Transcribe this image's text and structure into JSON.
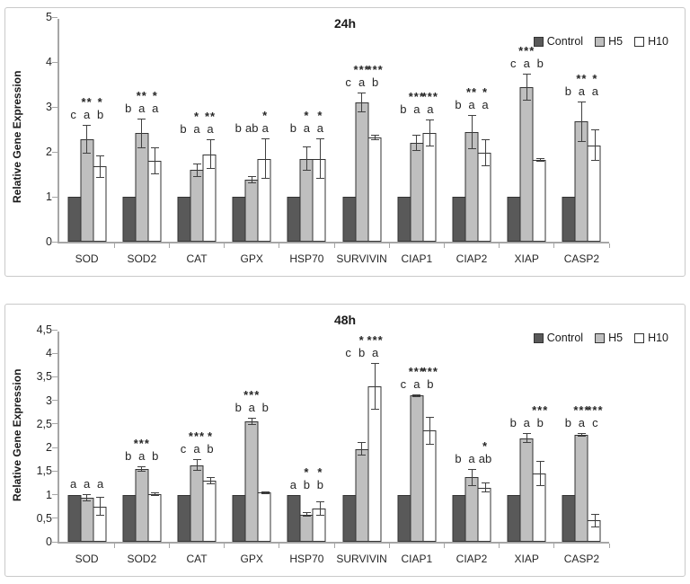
{
  "chart_data": [
    {
      "type": "bar",
      "title": "24h",
      "ylabel": "Relative Gene Expression",
      "ylim": [
        0,
        5
      ],
      "ystep": 1,
      "ytick_labels": [
        "0",
        "1",
        "2",
        "3",
        "4",
        "5"
      ],
      "grid": false,
      "legend_position": "top-right",
      "categories": [
        "SOD",
        "SOD2",
        "CAT",
        "GPX",
        "HSP70",
        "SURVIVIN",
        "CIAP1",
        "CIAP2",
        "XIAP",
        "CASP2"
      ],
      "series": [
        {
          "name": "Control",
          "fill": "#595959",
          "values": [
            1,
            1,
            1,
            1,
            1,
            1,
            1,
            1,
            1,
            1
          ],
          "errors": [
            0,
            0,
            0,
            0,
            0,
            0,
            0,
            0,
            0,
            0
          ]
        },
        {
          "name": "H5",
          "fill": "#bfbfbf",
          "values": [
            2.28,
            2.42,
            1.6,
            1.38,
            1.85,
            3.1,
            2.2,
            2.45,
            3.45,
            2.68
          ],
          "errors": [
            0.32,
            0.33,
            0.15,
            0.08,
            0.27,
            0.22,
            0.18,
            0.38,
            0.3,
            0.45
          ]
        },
        {
          "name": "H10",
          "fill": "#ffffff",
          "values": [
            1.68,
            1.8,
            1.95,
            1.85,
            1.85,
            2.33,
            2.42,
            1.98,
            1.82,
            2.15
          ],
          "errors": [
            0.25,
            0.3,
            0.33,
            0.45,
            0.45,
            0.06,
            0.3,
            0.3,
            0.04,
            0.35
          ]
        }
      ],
      "letters": [
        [
          "c",
          "a",
          "b"
        ],
        [
          "b",
          "a",
          "a"
        ],
        [
          "b",
          "a",
          "a"
        ],
        [
          "b",
          "ab",
          "a"
        ],
        [
          "b",
          "a",
          "a"
        ],
        [
          "c",
          "a",
          "b"
        ],
        [
          "b",
          "a",
          "a"
        ],
        [
          "b",
          "a",
          "a"
        ],
        [
          "c",
          "a",
          "b"
        ],
        [
          "b",
          "a",
          "a"
        ]
      ],
      "asterisks": [
        [
          "",
          "**",
          "*"
        ],
        [
          "",
          "**",
          "*"
        ],
        [
          "",
          "*",
          "**"
        ],
        [
          "",
          "",
          "*"
        ],
        [
          "",
          "*",
          "*"
        ],
        [
          "",
          "***",
          "***"
        ],
        [
          "",
          "***",
          "***"
        ],
        [
          "",
          "**",
          "*"
        ],
        [
          "",
          "***",
          ""
        ],
        [
          "",
          "**",
          "*"
        ]
      ]
    },
    {
      "type": "bar",
      "title": "48h",
      "ylabel": "Relative Gene Expression",
      "ylim": [
        0,
        4.5
      ],
      "ystep": 0.5,
      "ytick_labels": [
        "0",
        "0,5",
        "1",
        "1,5",
        "2",
        "2,5",
        "3",
        "3,5",
        "4",
        "4,5"
      ],
      "grid": false,
      "legend_position": "top-right",
      "categories": [
        "SOD",
        "SOD2",
        "CAT",
        "GPX",
        "HSP70",
        "SURVIVIN",
        "CIAP1",
        "CIAP2",
        "XIAP",
        "CASP2"
      ],
      "series": [
        {
          "name": "Control",
          "fill": "#595959",
          "values": [
            1,
            1,
            1,
            1,
            1,
            1,
            1,
            1,
            1,
            1
          ],
          "errors": [
            0,
            0,
            0,
            0,
            0,
            0,
            0,
            0,
            0,
            0
          ]
        },
        {
          "name": "H5",
          "fill": "#bfbfbf",
          "values": [
            0.94,
            1.54,
            1.63,
            2.55,
            0.58,
            1.97,
            3.1,
            1.37,
            2.2,
            2.27
          ],
          "errors": [
            0.08,
            0.06,
            0.13,
            0.08,
            0.05,
            0.14,
            0.03,
            0.18,
            0.1,
            0.03
          ]
        },
        {
          "name": "H10",
          "fill": "#ffffff",
          "values": [
            0.75,
            1.01,
            1.3,
            1.04,
            0.7,
            3.3,
            2.36,
            1.15,
            1.45,
            0.45
          ],
          "errors": [
            0.2,
            0.03,
            0.08,
            0.02,
            0.15,
            0.5,
            0.3,
            0.1,
            0.27,
            0.15
          ]
        }
      ],
      "letters": [
        [
          "a",
          "a",
          "a"
        ],
        [
          "b",
          "a",
          "b"
        ],
        [
          "c",
          "a",
          "b"
        ],
        [
          "b",
          "a",
          "b"
        ],
        [
          "a",
          "b",
          "b"
        ],
        [
          "c",
          "b",
          "a"
        ],
        [
          "c",
          "a",
          "b"
        ],
        [
          "b",
          "a",
          "ab"
        ],
        [
          "b",
          "a",
          "b"
        ],
        [
          "b",
          "a",
          "c"
        ]
      ],
      "asterisks": [
        [
          "",
          "",
          ""
        ],
        [
          "",
          "***",
          ""
        ],
        [
          "",
          "***",
          "*"
        ],
        [
          "",
          "***",
          ""
        ],
        [
          "",
          "*",
          "*"
        ],
        [
          "",
          "*",
          "***"
        ],
        [
          "",
          "***",
          "***"
        ],
        [
          "",
          "",
          "*"
        ],
        [
          "",
          "",
          "***"
        ],
        [
          "",
          "***",
          "***"
        ]
      ]
    }
  ],
  "colors": {
    "control_fill": "#595959",
    "h5_fill": "#bfbfbf",
    "h10_fill": "#ffffff",
    "bar_border": "#333333",
    "error_bar": "#404040",
    "axis": "#a6a6a6",
    "panel_border": "#c9c9c9",
    "text": "#262626"
  }
}
